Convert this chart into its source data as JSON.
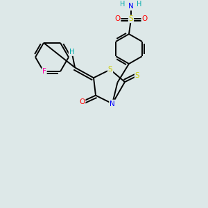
{
  "bg_color": "#dde8e8",
  "atom_colors": {
    "N": "#0000ff",
    "O": "#ff0000",
    "S": "#cccc00",
    "F": "#ff00aa",
    "H": "#00aaaa",
    "C": "#000000"
  },
  "lw": 1.4
}
